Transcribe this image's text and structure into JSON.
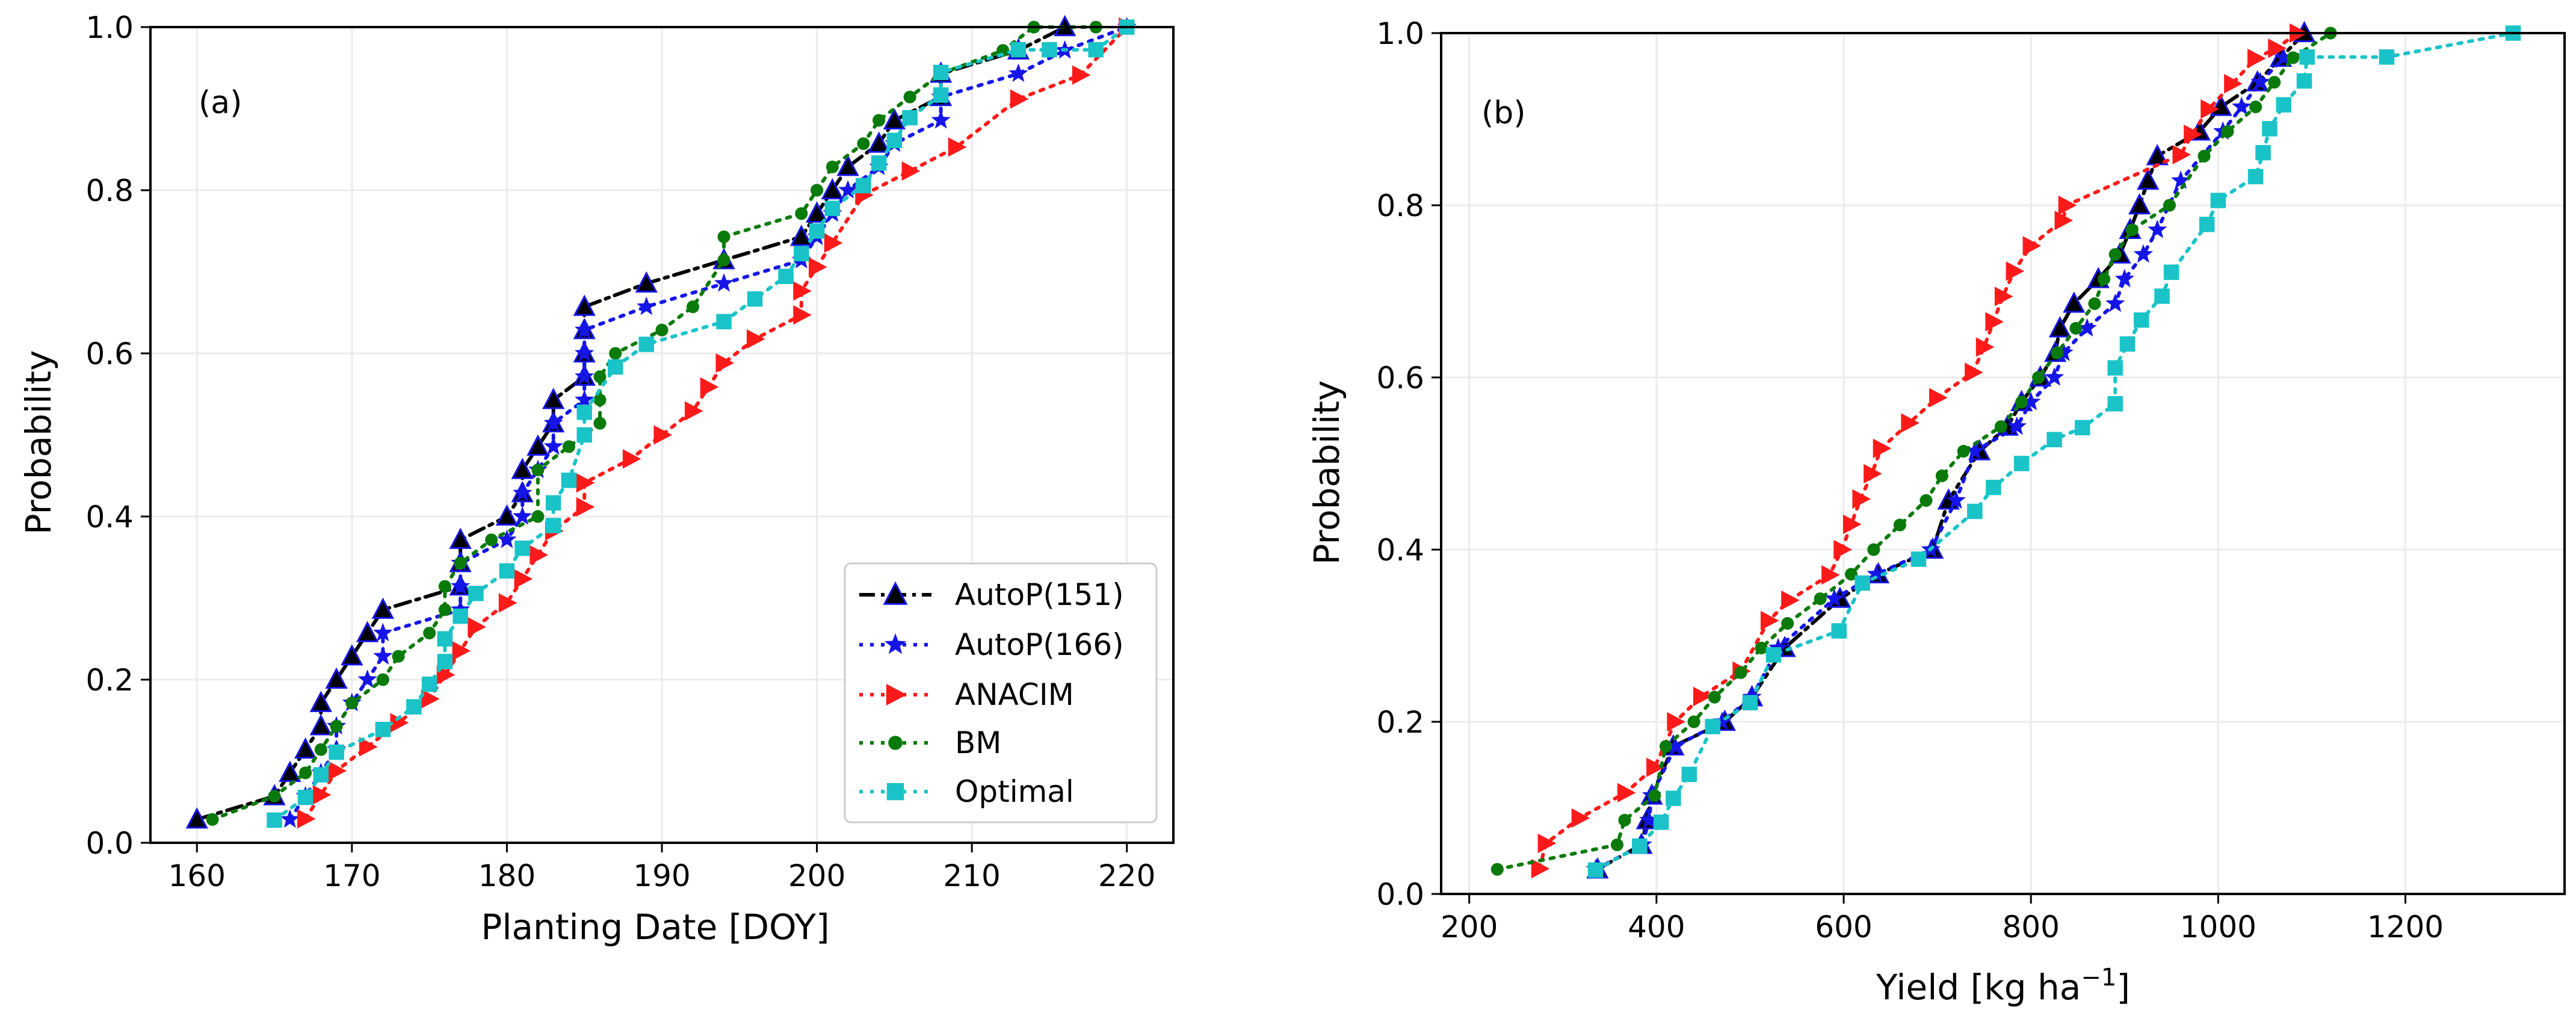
{
  "figure": {
    "description_labels": [
      "(a)",
      "(b)"
    ]
  },
  "chart_data": [
    {
      "type": "line",
      "panel_label": "(a)",
      "xlabel": "Planting Date [DOY]",
      "ylabel": "Probability",
      "xlim": [
        157,
        223
      ],
      "ylim": [
        0,
        1.0
      ],
      "xticks": [
        160,
        170,
        180,
        190,
        200,
        210,
        220
      ],
      "yticks": [
        0.0,
        0.2,
        0.4,
        0.6,
        0.8,
        1.0
      ],
      "xtick_labels": [
        "160",
        "170",
        "180",
        "190",
        "200",
        "210",
        "220"
      ],
      "ytick_labels": [
        "0.0",
        "0.2",
        "0.4",
        "0.6",
        "0.8",
        "1.0"
      ],
      "grid": true,
      "legend": {
        "placement": "lower-right",
        "entries": [
          "AutoP(151)",
          "AutoP(166)",
          "ANACIM",
          "BM",
          "Optimal"
        ]
      },
      "series": [
        {
          "name": "AutoP(151)",
          "color": "#000000",
          "marker": "triangle-up",
          "linestyle": "dashdot",
          "x": [
            160,
            165,
            166,
            167,
            168,
            168,
            169,
            170,
            171,
            172,
            177,
            177,
            177,
            180,
            181,
            181,
            182,
            183,
            183,
            185,
            185,
            185,
            185,
            189,
            194,
            199,
            200,
            201,
            202,
            204,
            205,
            208,
            208,
            213,
            216
          ],
          "y": [
            0.0286,
            0.0571,
            0.0857,
            0.1143,
            0.1429,
            0.1714,
            0.2,
            0.2286,
            0.2571,
            0.2857,
            0.3143,
            0.3429,
            0.3714,
            0.4,
            0.4286,
            0.4571,
            0.4857,
            0.5143,
            0.5429,
            0.5714,
            0.6,
            0.6286,
            0.6571,
            0.6857,
            0.7143,
            0.7429,
            0.7714,
            0.8,
            0.8286,
            0.8571,
            0.8857,
            0.9143,
            0.9429,
            0.9714,
            1.0
          ]
        },
        {
          "name": "AutoP(166)",
          "color": "#1515e8",
          "marker": "star",
          "linestyle": "dotted",
          "x": [
            166,
            167,
            168,
            169,
            169,
            170,
            171,
            172,
            172,
            177,
            177,
            177,
            180,
            181,
            181,
            182,
            183,
            183,
            185,
            185,
            185,
            185,
            189,
            194,
            199,
            200,
            201,
            202,
            204,
            205,
            208,
            208,
            213,
            216,
            220
          ],
          "y": [
            0.0286,
            0.0571,
            0.0857,
            0.1143,
            0.1429,
            0.1714,
            0.2,
            0.2286,
            0.2571,
            0.2857,
            0.3143,
            0.3429,
            0.3714,
            0.4,
            0.4286,
            0.4571,
            0.4857,
            0.5143,
            0.5429,
            0.5714,
            0.6,
            0.6286,
            0.6571,
            0.6857,
            0.7143,
            0.7429,
            0.7714,
            0.8,
            0.8286,
            0.8571,
            0.8857,
            0.9143,
            0.9429,
            0.9714,
            1.0
          ]
        },
        {
          "name": "ANACIM",
          "color": "#ff1a1a",
          "marker": "triangle-right",
          "linestyle": "dotted",
          "x": [
            167,
            168,
            169,
            171,
            173,
            175,
            176,
            177,
            178,
            180,
            181,
            182,
            183,
            185,
            185,
            188,
            190,
            192,
            193,
            194,
            196,
            199,
            199,
            200,
            201,
            203,
            206,
            209,
            213,
            217,
            220
          ],
          "y": [
            0.0294,
            0.0588,
            0.0882,
            0.1176,
            0.1471,
            0.1765,
            0.2059,
            0.2353,
            0.2647,
            0.2941,
            0.3235,
            0.3529,
            0.3824,
            0.4118,
            0.4412,
            0.4706,
            0.5,
            0.5294,
            0.5588,
            0.5882,
            0.6176,
            0.6471,
            0.6765,
            0.7059,
            0.7353,
            0.7941,
            0.8235,
            0.8529,
            0.9118,
            0.9412,
            1.0
          ]
        },
        {
          "name": "BM",
          "color": "#0a7a0a",
          "marker": "circle",
          "linestyle": "dotted",
          "x": [
            161,
            165,
            167,
            168,
            169,
            170,
            172,
            173,
            175,
            176,
            176,
            177,
            179,
            182,
            182,
            184,
            186,
            186,
            186,
            187,
            190,
            192,
            194,
            194,
            199,
            200,
            201,
            203,
            204,
            206,
            208,
            212,
            214,
            218
          ],
          "y": [
            0.0286,
            0.0571,
            0.0857,
            0.1143,
            0.1429,
            0.1714,
            0.2,
            0.2286,
            0.2571,
            0.2857,
            0.3143,
            0.3429,
            0.3714,
            0.4,
            0.4571,
            0.4857,
            0.5143,
            0.5429,
            0.5714,
            0.6,
            0.6286,
            0.6571,
            0.7143,
            0.7429,
            0.7714,
            0.8,
            0.8286,
            0.8571,
            0.8857,
            0.9143,
            0.9429,
            0.9714,
            1.0,
            1.0
          ]
        },
        {
          "name": "Optimal",
          "color": "#1ac3c7",
          "marker": "square",
          "linestyle": "dotted",
          "x": [
            165,
            167,
            168,
            169,
            172,
            174,
            175,
            176,
            176,
            177,
            178,
            180,
            181,
            183,
            183,
            184,
            185,
            185,
            187,
            189,
            194,
            196,
            198,
            199,
            200,
            201,
            203,
            204,
            205,
            206,
            208,
            208,
            213,
            215,
            218,
            220
          ],
          "y": [
            0.0278,
            0.0556,
            0.0833,
            0.1111,
            0.1389,
            0.1667,
            0.1944,
            0.2222,
            0.25,
            0.2778,
            0.3056,
            0.3333,
            0.3611,
            0.3889,
            0.4167,
            0.4444,
            0.5,
            0.5278,
            0.5833,
            0.6111,
            0.6389,
            0.6667,
            0.6944,
            0.7222,
            0.75,
            0.7778,
            0.8056,
            0.8333,
            0.8611,
            0.8889,
            0.9167,
            0.9444,
            0.9722,
            0.9722,
            0.9722,
            1.0
          ]
        }
      ]
    },
    {
      "type": "line",
      "panel_label": "(b)",
      "xlabel": "Yield [kg ha⁻¹]",
      "ylabel": "Probability",
      "xlim": [
        170,
        1370
      ],
      "ylim": [
        0,
        1.0
      ],
      "xticks": [
        200,
        400,
        600,
        800,
        1000,
        1200
      ],
      "yticks": [
        0.0,
        0.2,
        0.4,
        0.6,
        0.8,
        1.0
      ],
      "xtick_labels": [
        "200",
        "400",
        "600",
        "800",
        "1000",
        "1200"
      ],
      "ytick_labels": [
        "0.0",
        "0.2",
        "0.4",
        "0.6",
        "0.8",
        "1.0"
      ],
      "grid": true,
      "legend": null,
      "series": [
        {
          "name": "AutoP(151)",
          "color": "#000000",
          "marker": "triangle-up",
          "linestyle": "dashdot",
          "x": [
            337,
            384,
            390,
            395,
            418,
            473,
            502,
            537,
            596,
            637,
            695,
            712,
            745,
            775,
            790,
            810,
            826,
            831,
            846,
            872,
            895,
            906,
            916,
            925,
            935,
            980,
            1003,
            1042,
            1067,
            1092
          ],
          "y": [
            0.0286,
            0.0571,
            0.0857,
            0.1143,
            0.1714,
            0.2,
            0.2286,
            0.2857,
            0.3429,
            0.3714,
            0.4,
            0.4571,
            0.5143,
            0.5429,
            0.5714,
            0.6,
            0.6286,
            0.6571,
            0.6857,
            0.7143,
            0.7429,
            0.7714,
            0.8,
            0.8286,
            0.8571,
            0.8857,
            0.9143,
            0.9429,
            0.9714,
            1.0
          ]
        },
        {
          "name": "AutoP(166)",
          "color": "#1515e8",
          "marker": "star",
          "linestyle": "dotted",
          "x": [
            335,
            385,
            392,
            395,
            420,
            470,
            502,
            530,
            590,
            635,
            693,
            720,
            740,
            785,
            800,
            825,
            835,
            860,
            890,
            900,
            920,
            935,
            960,
            1005,
            1025,
            1045,
            1070
          ],
          "y": [
            0.0286,
            0.0571,
            0.0857,
            0.1143,
            0.1714,
            0.2,
            0.2286,
            0.2857,
            0.3429,
            0.3714,
            0.4,
            0.4571,
            0.5143,
            0.5429,
            0.5714,
            0.6,
            0.6286,
            0.6571,
            0.6857,
            0.7143,
            0.7429,
            0.7714,
            0.8286,
            0.8857,
            0.9143,
            0.9429,
            0.9714
          ]
        },
        {
          "name": "ANACIM",
          "color": "#ff1a1a",
          "marker": "triangle-right",
          "linestyle": "dotted",
          "x": [
            275,
            282,
            318,
            367,
            398,
            420,
            448,
            490,
            520,
            542,
            585,
            598,
            608,
            618,
            630,
            640,
            670,
            700,
            738,
            750,
            760,
            770,
            782,
            800,
            834,
            838,
            960,
            972,
            990,
            1015,
            1040,
            1062,
            1085
          ],
          "y": [
            0.0294,
            0.0588,
            0.0882,
            0.1176,
            0.1471,
            0.2,
            0.2294,
            0.2588,
            0.3176,
            0.3412,
            0.3706,
            0.4,
            0.4294,
            0.4588,
            0.4882,
            0.5176,
            0.5471,
            0.5765,
            0.6059,
            0.6353,
            0.6647,
            0.6941,
            0.7235,
            0.7529,
            0.7824,
            0.8,
            0.8588,
            0.8824,
            0.9118,
            0.9412,
            0.9706,
            0.9824,
            1.0
          ]
        },
        {
          "name": "BM",
          "color": "#0a7a0a",
          "marker": "circle",
          "linestyle": "dotted",
          "x": [
            230,
            358,
            366,
            398,
            410,
            440,
            462,
            490,
            512,
            540,
            575,
            608,
            632,
            660,
            688,
            705,
            728,
            768,
            790,
            808,
            828,
            848,
            868,
            878,
            890,
            908,
            948,
            985,
            1010,
            1040,
            1060,
            1080,
            1120
          ],
          "y": [
            0.0286,
            0.0571,
            0.0857,
            0.1143,
            0.1714,
            0.2,
            0.2286,
            0.2571,
            0.2857,
            0.3143,
            0.3429,
            0.3714,
            0.4,
            0.4286,
            0.4571,
            0.4857,
            0.5143,
            0.5429,
            0.5714,
            0.6,
            0.6286,
            0.6571,
            0.6857,
            0.7143,
            0.7429,
            0.7714,
            0.8,
            0.8571,
            0.8857,
            0.9143,
            0.9429,
            0.9714,
            1.0
          ]
        },
        {
          "name": "Optimal",
          "color": "#1ac3c7",
          "marker": "square",
          "linestyle": "dotted",
          "x": [
            335,
            382,
            405,
            418,
            435,
            460,
            500,
            525,
            595,
            620,
            680,
            740,
            760,
            790,
            825,
            855,
            890,
            890,
            903,
            918,
            940,
            950,
            988,
            1000,
            1040,
            1048,
            1055,
            1070,
            1092,
            1095,
            1180,
            1315
          ],
          "y": [
            0.0278,
            0.0556,
            0.0833,
            0.1111,
            0.1389,
            0.1944,
            0.2222,
            0.2778,
            0.3056,
            0.3611,
            0.3889,
            0.4444,
            0.4722,
            0.5,
            0.5278,
            0.5417,
            0.5694,
            0.6111,
            0.6389,
            0.6667,
            0.6944,
            0.7222,
            0.7778,
            0.8056,
            0.8333,
            0.8611,
            0.8889,
            0.9167,
            0.9444,
            0.9722,
            0.9722,
            1.0
          ]
        }
      ]
    }
  ]
}
